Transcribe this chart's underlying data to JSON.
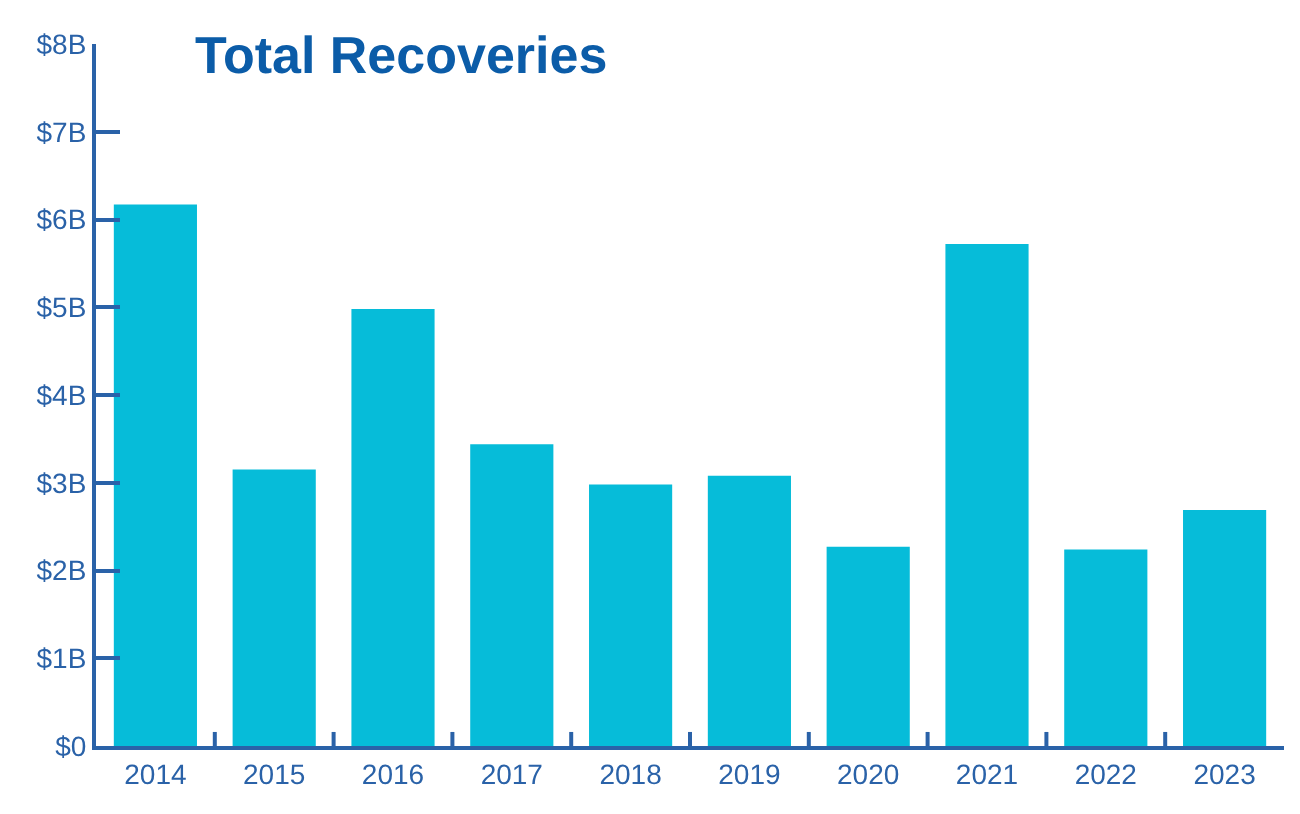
{
  "chart_data": {
    "type": "bar",
    "title": "Total Recoveries",
    "categories": [
      "2014",
      "2015",
      "2016",
      "2017",
      "2018",
      "2019",
      "2020",
      "2021",
      "2022",
      "2023"
    ],
    "values": [
      6.17,
      3.15,
      4.98,
      3.44,
      2.98,
      3.08,
      2.27,
      5.72,
      2.24,
      2.69
    ],
    "color": "#06bcd9",
    "ylim": [
      0,
      8
    ],
    "yticks": [
      {
        "value": 0,
        "label": "$0"
      },
      {
        "value": 1,
        "label": "$1B"
      },
      {
        "value": 2,
        "label": "$2B"
      },
      {
        "value": 3,
        "label": "$3B"
      },
      {
        "value": 4,
        "label": "$4B"
      },
      {
        "value": 5,
        "label": "$5B"
      },
      {
        "value": 6,
        "label": "$6B"
      },
      {
        "value": 7,
        "label": "$7B"
      },
      {
        "value": 8,
        "label": "$8B"
      }
    ]
  }
}
